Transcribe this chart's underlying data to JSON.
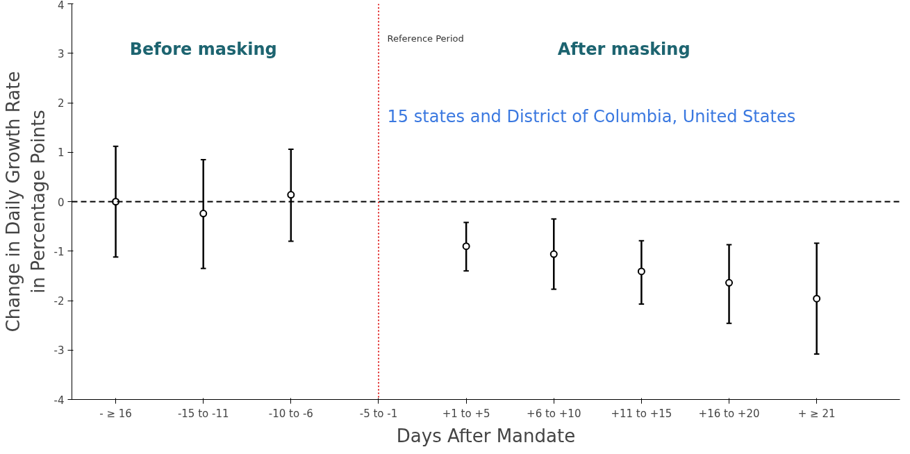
{
  "chart_data": {
    "type": "scatter",
    "subtitle": "15 states and District of Columbia, United States",
    "xlabel": "Days After Mandate",
    "ylabel": "Change in Daily Growth Rate\nin Percentage Points",
    "categories": [
      "- ≥ 16",
      "-15 to -11",
      "-10 to -6",
      "-5 to -1",
      "+1 to +5",
      "+6 to +10",
      "+11 to +15",
      "+16 to +20",
      "+ ≥ 21"
    ],
    "series": [
      {
        "color": "#000000",
        "values": [
          0.0,
          -0.24,
          0.14,
          null,
          -0.9,
          -1.06,
          -1.41,
          -1.64,
          -1.96
        ],
        "errors": [
          [
            -1.12,
            1.12
          ],
          [
            -1.35,
            0.85
          ],
          [
            -0.8,
            1.06
          ],
          null,
          [
            -1.4,
            -0.42
          ],
          [
            -1.77,
            -0.35
          ],
          [
            -2.07,
            -0.79
          ],
          [
            -2.46,
            -0.87
          ],
          [
            -3.08,
            -0.84
          ]
        ]
      }
    ],
    "ylim": [
      -4,
      4
    ],
    "yticks": [
      4,
      3,
      2,
      1,
      0,
      -1,
      -2,
      -3,
      -4
    ],
    "marker": "circle",
    "grid": false,
    "ref_lines": [
      {
        "axis": "y",
        "value": 0,
        "color": "#000000",
        "line_style": "dashed"
      },
      {
        "axis": "x",
        "value": "-5 to -1",
        "label": "Reference Period",
        "color": "#e02020",
        "line_style": "dotted"
      }
    ],
    "annotations": [
      "Before masking",
      "After masking"
    ]
  }
}
